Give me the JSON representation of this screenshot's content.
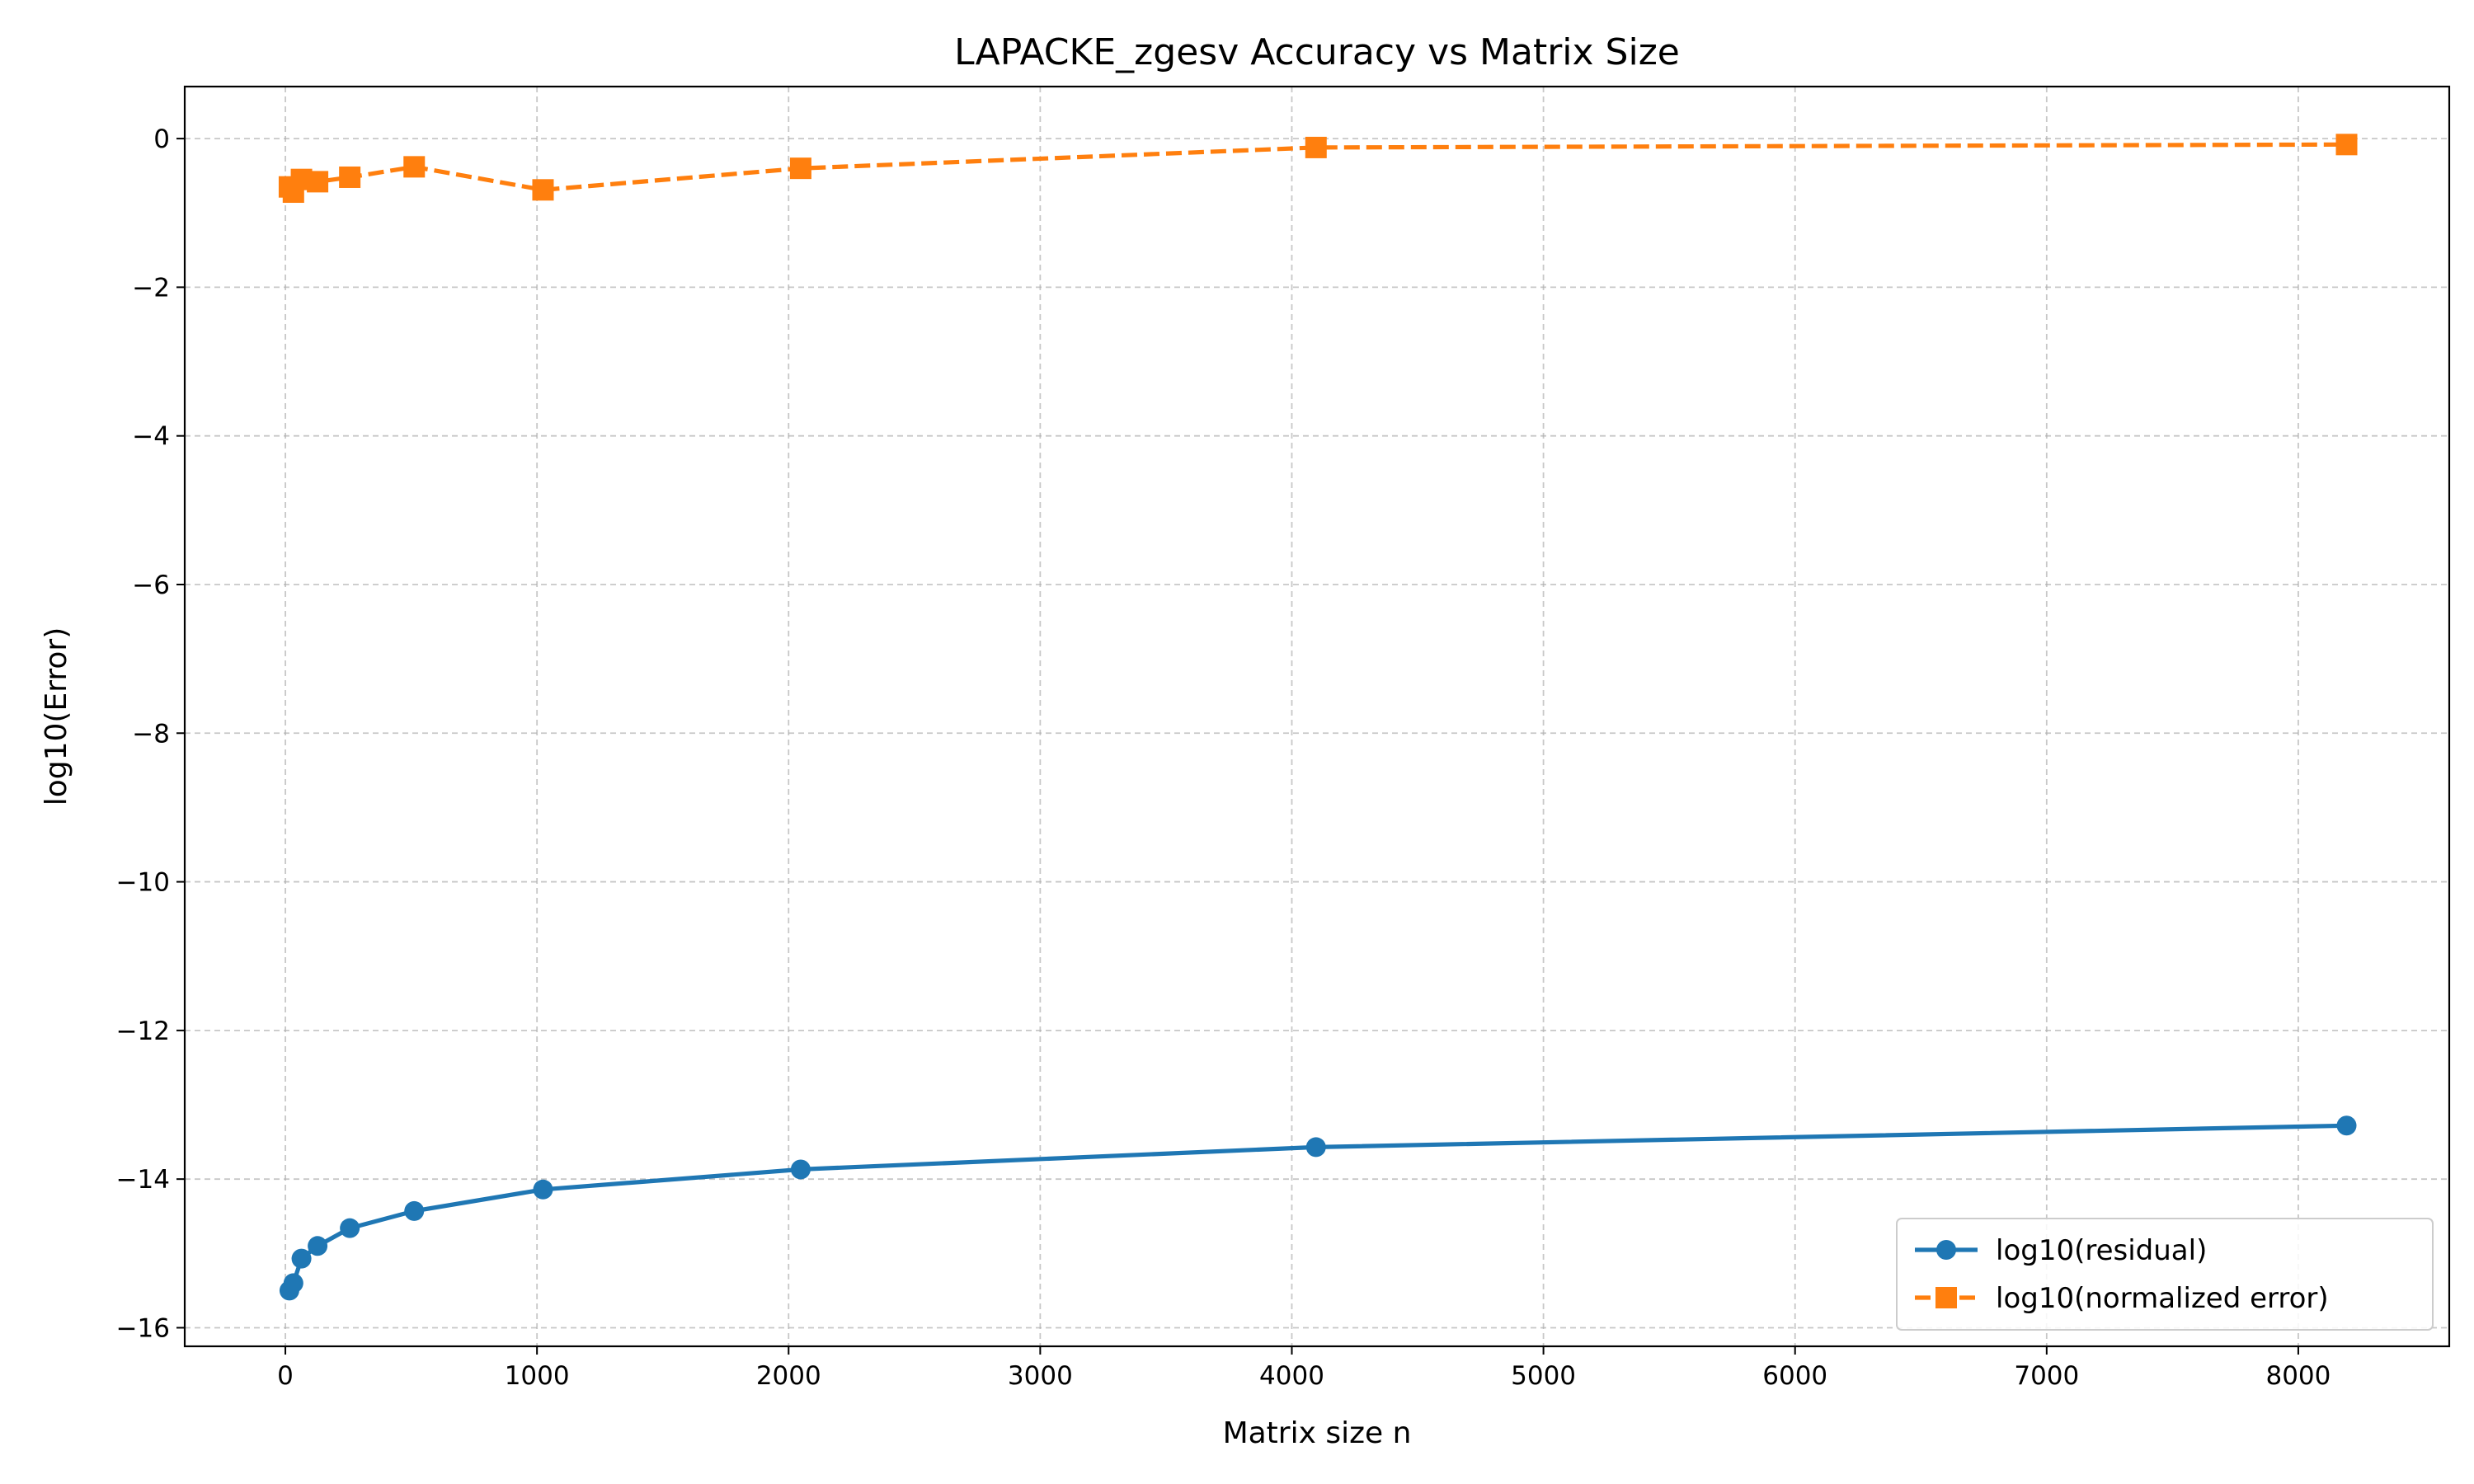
{
  "chart_data": {
    "type": "line",
    "title": "LAPACKE_zgesv Accuracy vs Matrix Size",
    "xlabel": "Matrix size n",
    "ylabel": "log10(Error)",
    "xlim": [
      -400,
      8600
    ],
    "ylim": [
      -16.25,
      0.7
    ],
    "xticks": [
      0,
      1000,
      2000,
      3000,
      4000,
      5000,
      6000,
      7000,
      8000
    ],
    "yticks": [
      0,
      -2,
      -4,
      -6,
      -8,
      -10,
      -12,
      -14,
      -16
    ],
    "xtick_labels": [
      "0",
      "1000",
      "2000",
      "3000",
      "4000",
      "5000",
      "6000",
      "7000",
      "8000"
    ],
    "ytick_labels": [
      "0",
      "−2",
      "−4",
      "−6",
      "−8",
      "−10",
      "−12",
      "−14",
      "−16"
    ],
    "grid": true,
    "legend_position": "lower-right",
    "x": [
      16,
      32,
      64,
      128,
      256,
      512,
      1024,
      2048,
      4096,
      8192
    ],
    "series": [
      {
        "name": "log10(residual)",
        "color": "#1f77b4",
        "marker": "circle",
        "linestyle": "solid",
        "values": [
          -15.5,
          -15.4,
          -15.07,
          -14.9,
          -14.66,
          -14.43,
          -14.14,
          -13.87,
          -13.57,
          -13.28
        ]
      },
      {
        "name": "log10(normalized error)",
        "color": "#ff7f0e",
        "marker": "square",
        "linestyle": "dashed",
        "values": [
          -0.65,
          -0.72,
          -0.55,
          -0.58,
          -0.52,
          -0.38,
          -0.69,
          -0.4,
          -0.12,
          -0.08
        ]
      }
    ]
  }
}
